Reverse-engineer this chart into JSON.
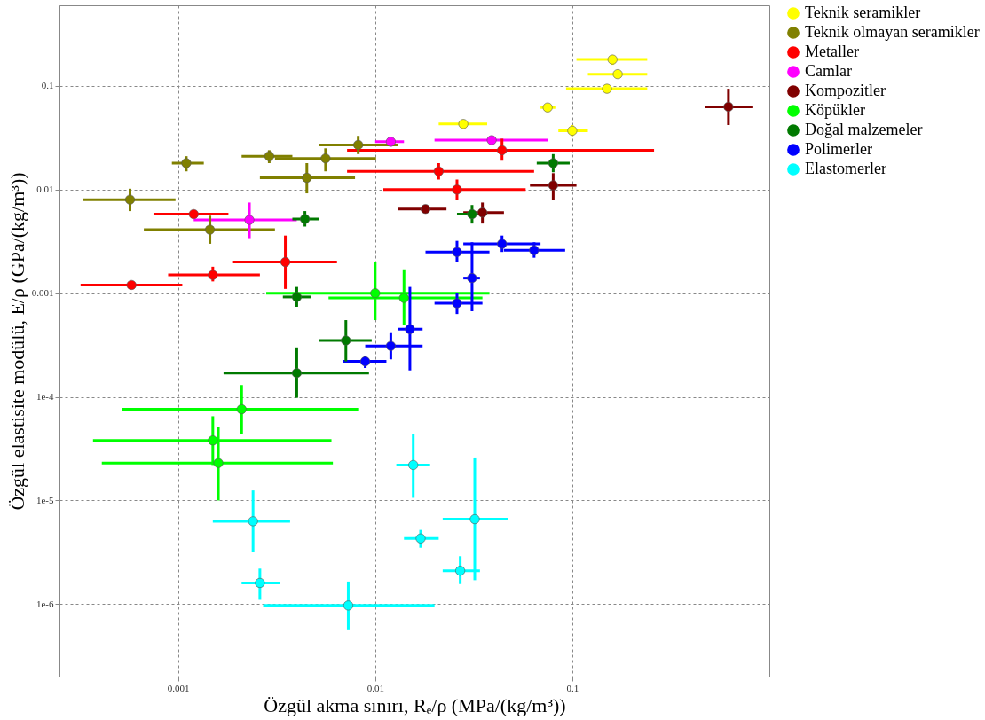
{
  "chart_data": {
    "type": "scatter",
    "log": "xy",
    "grid": true,
    "marker": "circle",
    "legend": "right",
    "xlabel": "Özgül akma sınırı, Rₑ/ρ (MPa/(kg/m³))",
    "ylabel": "Özgül elastisite modülü, E/ρ (GPa/(kg/m³))",
    "xlim": [
      0.00025,
      1.0
    ],
    "ylim": [
      2e-07,
      0.6
    ],
    "xticks": [
      0.001,
      0.01,
      0.1
    ],
    "yticks": [
      {
        "value": 1e-06,
        "label": "1e-6"
      },
      {
        "value": 1e-05,
        "label": "1e-5"
      },
      {
        "value": 0.0001,
        "label": "1e-4"
      },
      0.001,
      0.01,
      0.1
    ],
    "series": [
      {
        "name": "Teknik seramikler",
        "color": "#ffff00",
        "x": [
          0.16,
          0.17,
          0.15,
          0.028,
          0.1,
          0.075
        ],
        "values": [
          0.18,
          0.13,
          0.094,
          0.043,
          0.037,
          0.062
        ],
        "xerrors": [
          [
            0.105,
            0.24
          ],
          [
            0.12,
            0.24
          ],
          [
            0.093,
            0.24
          ],
          [
            0.021,
            0.037
          ],
          [
            0.085,
            0.12
          ],
          [
            0.069,
            0.082
          ]
        ],
        "errors": [
          [
            0.16,
            0.19
          ],
          [
            0.12,
            0.14
          ],
          [
            0.085,
            0.104
          ],
          [
            0.039,
            0.047
          ],
          [
            0.033,
            0.042
          ],
          [
            0.057,
            0.067
          ]
        ]
      },
      {
        "name": "Teknik olmayan seramikler",
        "color": "#808000",
        "x": [
          0.00057,
          0.00145,
          0.0045,
          0.0056,
          0.0082,
          0.0011,
          0.0029
        ],
        "values": [
          0.008,
          0.0041,
          0.013,
          0.02,
          0.027,
          0.018,
          0.021
        ],
        "xerrors": [
          [
            0.00033,
            0.00097
          ],
          [
            0.00067,
            0.0031
          ],
          [
            0.0026,
            0.0079
          ],
          [
            0.0031,
            0.0101
          ],
          [
            0.0052,
            0.013
          ],
          [
            0.00093,
            0.00135
          ],
          [
            0.0021,
            0.0038
          ]
        ],
        "errors": [
          [
            0.0062,
            0.0102
          ],
          [
            0.003,
            0.0056
          ],
          [
            0.0092,
            0.018
          ],
          [
            0.015,
            0.025
          ],
          [
            0.022,
            0.033
          ],
          [
            0.015,
            0.021
          ],
          [
            0.018,
            0.024
          ]
        ]
      },
      {
        "name": "Metaller",
        "color": "#ff0000",
        "x": [
          0.00058,
          0.0015,
          0.0035,
          0.0012,
          0.044,
          0.026,
          0.021
        ],
        "values": [
          0.0012,
          0.0015,
          0.002,
          0.0058,
          0.024,
          0.01,
          0.015
        ],
        "xerrors": [
          [
            0.00032,
            0.00105
          ],
          [
            0.00089,
            0.0026
          ],
          [
            0.0019,
            0.0064
          ],
          [
            0.00075,
            0.0018
          ],
          [
            0.0072,
            0.26
          ],
          [
            0.011,
            0.058
          ],
          [
            0.0072,
            0.064
          ]
        ],
        "errors": [
          [
            0.0011,
            0.0013
          ],
          [
            0.0013,
            0.0018
          ],
          [
            0.0011,
            0.0036
          ],
          [
            0.0053,
            0.0063
          ],
          [
            0.019,
            0.031
          ],
          [
            0.008,
            0.0125
          ],
          [
            0.0125,
            0.018
          ]
        ]
      },
      {
        "name": "Camlar",
        "color": "#ff00ff",
        "x": [
          0.0023,
          0.012,
          0.039
        ],
        "values": [
          0.0051,
          0.029,
          0.03
        ],
        "xerrors": [
          [
            0.0012,
            0.004
          ],
          [
            0.01,
            0.014
          ],
          [
            0.02,
            0.075
          ]
        ],
        "errors": [
          [
            0.0034,
            0.0075
          ],
          [
            0.026,
            0.031
          ],
          [
            0.028,
            0.033
          ]
        ]
      },
      {
        "name": "Kompozitler",
        "color": "#800000",
        "x": [
          0.62,
          0.08,
          0.018,
          0.035
        ],
        "values": [
          0.063,
          0.011,
          0.0065,
          0.006
        ],
        "xerrors": [
          [
            0.47,
            0.82
          ],
          [
            0.061,
            0.105
          ],
          [
            0.013,
            0.023
          ],
          [
            0.028,
            0.045
          ]
        ],
        "errors": [
          [
            0.042,
            0.094
          ],
          [
            0.008,
            0.0144
          ],
          [
            0.006,
            0.0071
          ],
          [
            0.0047,
            0.0075
          ]
        ]
      },
      {
        "name": "Köpükler",
        "color": "#00ff00",
        "x": [
          0.0016,
          0.0015,
          0.0021,
          0.01,
          0.014
        ],
        "values": [
          2.3e-05,
          3.8e-05,
          7.6e-05,
          0.001,
          0.0009
        ],
        "xerrors": [
          [
            0.00041,
            0.0061
          ],
          [
            0.00037,
            0.006
          ],
          [
            0.00052,
            0.0082
          ],
          [
            0.0028,
            0.038
          ],
          [
            0.0058,
            0.035
          ]
        ],
        "errors": [
          [
            1e-05,
            5.1e-05
          ],
          [
            2.2e-05,
            6.5e-05
          ],
          [
            4.4e-05,
            0.00013
          ],
          [
            0.00055,
            0.002
          ],
          [
            0.00049,
            0.0017
          ]
        ]
      },
      {
        "name": "Doğal malzemeler",
        "color": "#007a00",
        "x": [
          0.004,
          0.0071,
          0.0044,
          0.004,
          0.08,
          0.031
        ],
        "values": [
          0.00017,
          0.00035,
          0.0052,
          0.00092,
          0.018,
          0.0058
        ],
        "xerrors": [
          [
            0.0017,
            0.0093
          ],
          [
            0.0052,
            0.0096
          ],
          [
            0.0038,
            0.0052
          ],
          [
            0.0034,
            0.0047
          ],
          [
            0.066,
            0.097
          ],
          [
            0.026,
            0.037
          ]
        ],
        "errors": [
          [
            9.8e-05,
            0.0003
          ],
          [
            0.00022,
            0.00055
          ],
          [
            0.0044,
            0.0062
          ],
          [
            0.00074,
            0.00115
          ],
          [
            0.0147,
            0.022
          ],
          [
            0.0047,
            0.0071
          ]
        ]
      },
      {
        "name": "Polimerler",
        "color": "#0000ff",
        "x": [
          0.026,
          0.044,
          0.015,
          0.012,
          0.0089,
          0.026,
          0.031,
          0.064
        ],
        "values": [
          0.0025,
          0.003,
          0.00045,
          0.00031,
          0.00022,
          0.0008,
          0.0014,
          0.0026
        ],
        "xerrors": [
          [
            0.018,
            0.038
          ],
          [
            0.028,
            0.069
          ],
          [
            0.013,
            0.0174
          ],
          [
            0.0089,
            0.0174
          ],
          [
            0.0069,
            0.0114
          ],
          [
            0.02,
            0.035
          ],
          [
            0.028,
            0.034
          ],
          [
            0.045,
            0.092
          ]
        ],
        "errors": [
          [
            0.002,
            0.0032
          ],
          [
            0.0025,
            0.0036
          ],
          [
            0.00018,
            0.00115
          ],
          [
            0.00023,
            0.00042
          ],
          [
            0.00019,
            0.00025
          ],
          [
            0.00063,
            0.001
          ],
          [
            0.00067,
            0.0031
          ],
          [
            0.0022,
            0.0031
          ]
        ]
      },
      {
        "name": "Elastomerler",
        "color": "#00ffff",
        "x": [
          0.0024,
          0.0073,
          0.0026,
          0.0156,
          0.032,
          0.027,
          0.017
        ],
        "values": [
          6.3e-06,
          9.7e-07,
          1.6e-06,
          2.2e-05,
          6.6e-06,
          2.1e-06,
          4.3e-06
        ],
        "xerrors": [
          [
            0.0015,
            0.0037
          ],
          [
            0.0027,
            0.02
          ],
          [
            0.0021,
            0.0033
          ],
          [
            0.0128,
            0.019
          ],
          [
            0.022,
            0.047
          ],
          [
            0.022,
            0.034
          ],
          [
            0.014,
            0.021
          ]
        ],
        "errors": [
          [
            3.2e-06,
            1.25e-05
          ],
          [
            5.7e-07,
            1.65e-06
          ],
          [
            1.1e-06,
            2.2e-06
          ],
          [
            1.06e-05,
            4.4e-05
          ],
          [
            1.7e-06,
            2.6e-05
          ],
          [
            1.56e-06,
            2.9e-06
          ],
          [
            3.5e-06,
            5.2e-06
          ]
        ]
      }
    ]
  }
}
